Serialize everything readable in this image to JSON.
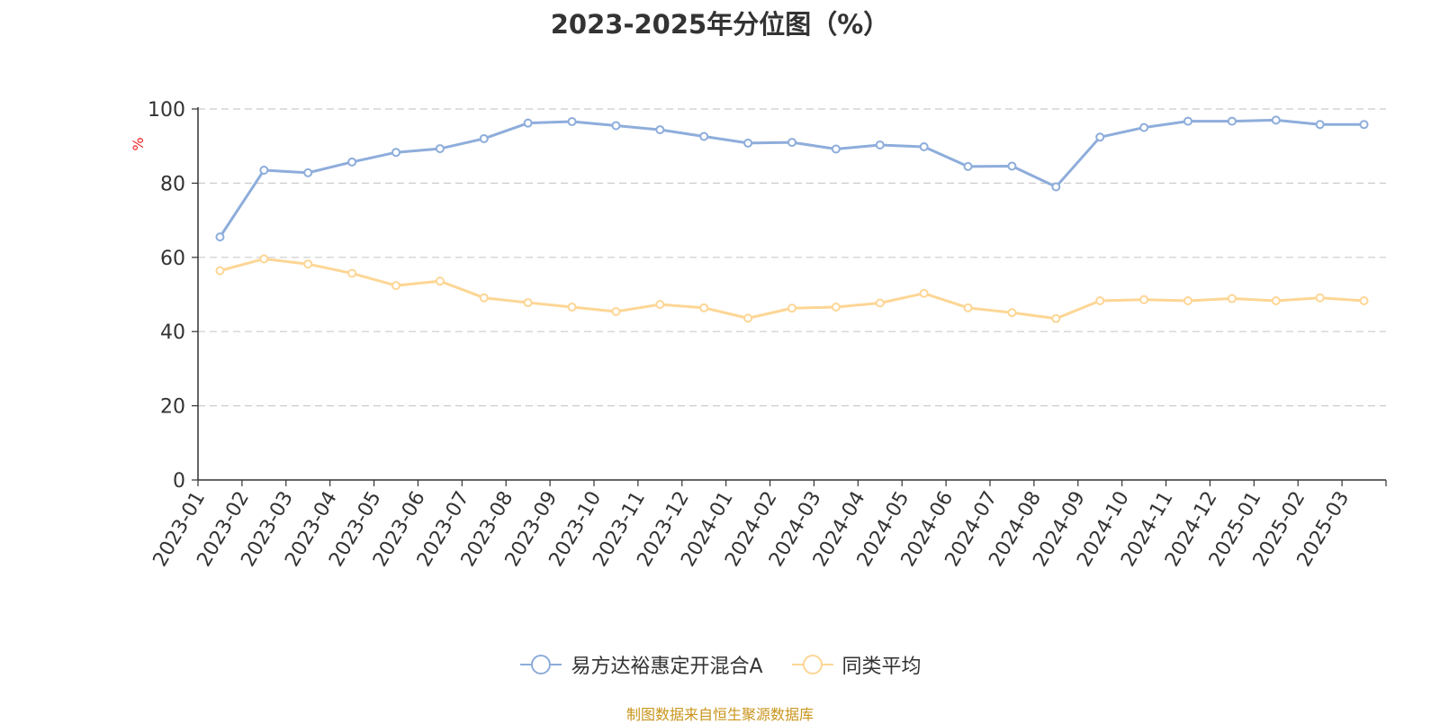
{
  "chart_data": {
    "type": "line",
    "title": "2023-2025年分位图（%）",
    "ylabel": "%",
    "ylim": [
      0,
      100
    ],
    "yticks": [
      0,
      20,
      40,
      60,
      80,
      100
    ],
    "grid": true,
    "legend_position": "bottom",
    "categories": [
      "2023-01",
      "2023-02",
      "2023-03",
      "2023-04",
      "2023-05",
      "2023-06",
      "2023-07",
      "2023-08",
      "2023-09",
      "2023-10",
      "2023-11",
      "2023-12",
      "2024-01",
      "2024-02",
      "2024-03",
      "2024-04",
      "2024-05",
      "2024-06",
      "2024-07",
      "2024-08",
      "2024-09",
      "2024-10",
      "2024-11",
      "2024-12",
      "2025-01",
      "2025-02",
      "2025-03"
    ],
    "series": [
      {
        "name": "易方达裕惠定开混合A",
        "color": "#8eaddb",
        "values": [
          65.5,
          83.5,
          82.8,
          85.7,
          88.3,
          89.3,
          92.0,
          96.2,
          96.6,
          95.5,
          94.4,
          92.6,
          90.8,
          91.0,
          89.2,
          90.3,
          89.8,
          84.5,
          84.6,
          79.0,
          92.4,
          95.0,
          96.7,
          96.7,
          97.0,
          95.8,
          95.8
        ]
      },
      {
        "name": "同类平均",
        "color": "#fdd695",
        "values": [
          56.4,
          59.6,
          58.2,
          55.7,
          52.4,
          53.6,
          49.1,
          47.8,
          46.6,
          45.4,
          47.3,
          46.4,
          43.6,
          46.3,
          46.6,
          47.7,
          50.3,
          46.4,
          45.1,
          43.5,
          48.3,
          48.6,
          48.3,
          48.9,
          48.3,
          49.1,
          48.3
        ]
      }
    ]
  },
  "source_note": "制图数据来自恒生聚源数据库",
  "colors": {
    "axis": "#333333",
    "grid": "#cccccc",
    "ylabel": "#ee2222"
  }
}
